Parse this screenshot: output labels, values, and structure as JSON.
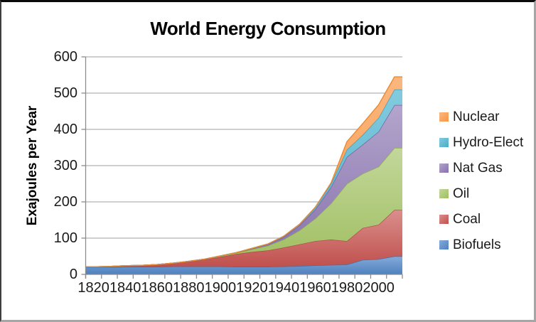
{
  "chart_data": {
    "type": "area",
    "stacked": true,
    "title": "World Energy Consumption",
    "ylabel": "Exajoules per Year",
    "xlabel": "",
    "ylim": [
      0,
      600
    ],
    "yticks": [
      600,
      500,
      400,
      300,
      200,
      100,
      0
    ],
    "xtick_labels": [
      "1820",
      "1840",
      "1860",
      "1880",
      "1900",
      "1920",
      "1940",
      "1960",
      "1980",
      "2000"
    ],
    "grid": "horizontal",
    "legend_position": "right",
    "categories": [
      1820,
      1830,
      1840,
      1850,
      1860,
      1870,
      1880,
      1890,
      1900,
      1910,
      1920,
      1930,
      1940,
      1950,
      1960,
      1970,
      1980,
      1990,
      2000,
      2010
    ],
    "series": [
      {
        "name": "Biofuels",
        "color": "#4F81BD",
        "color_light": "#85ABDC",
        "color_edge": "#3E6FA8",
        "values": [
          20,
          20,
          21,
          21,
          21,
          22,
          22,
          22,
          22,
          21,
          21,
          21,
          22,
          23,
          25,
          26,
          27,
          40,
          42,
          50
        ]
      },
      {
        "name": "Coal",
        "color": "#C0504D",
        "color_light": "#DA8F8C",
        "color_edge": "#AF4B48",
        "values": [
          1,
          2,
          3,
          4,
          6,
          9,
          13,
          19,
          26,
          35,
          41,
          45,
          52,
          60,
          67,
          70,
          65,
          88,
          95,
          128
        ]
      },
      {
        "name": "Oil",
        "color": "#9FBE60",
        "color_light": "#C2D79A",
        "color_edge": "#8CAB50",
        "values": [
          0,
          0,
          0,
          0,
          0,
          0,
          1,
          1,
          2,
          3,
          7,
          13,
          22,
          38,
          62,
          100,
          158,
          150,
          160,
          171
        ]
      },
      {
        "name": "Nat Gas",
        "color": "#8670AC",
        "color_light": "#B3A5CC",
        "color_edge": "#75619B",
        "values": [
          0,
          0,
          0,
          0,
          0,
          0,
          0,
          0,
          1,
          1,
          2,
          4,
          7,
          14,
          25,
          45,
          74,
          80,
          97,
          118
        ]
      },
      {
        "name": "Hydro-Elect",
        "color": "#4BACC6",
        "color_light": "#83CBDF",
        "color_edge": "#3E9BB5",
        "values": [
          0,
          0,
          0,
          0,
          0,
          0,
          0,
          0,
          0,
          0,
          1,
          1,
          2,
          3,
          6,
          10,
          20,
          27,
          38,
          43
        ]
      },
      {
        "name": "Nuclear",
        "color": "#F79646",
        "color_light": "#FBB77F",
        "color_edge": "#E98A33",
        "values": [
          0,
          0,
          0,
          0,
          0,
          0,
          0,
          0,
          0,
          0,
          0,
          0,
          0,
          0,
          0,
          2,
          22,
          31,
          36,
          35
        ]
      }
    ],
    "legend": {
      "entries": [
        "Nuclear",
        "Hydro-Elect",
        "Nat Gas",
        "Oil",
        "Coal",
        "Biofuels"
      ]
    },
    "axis_color": "#8c8c8c",
    "gridline_color": "#b2b2b2"
  }
}
